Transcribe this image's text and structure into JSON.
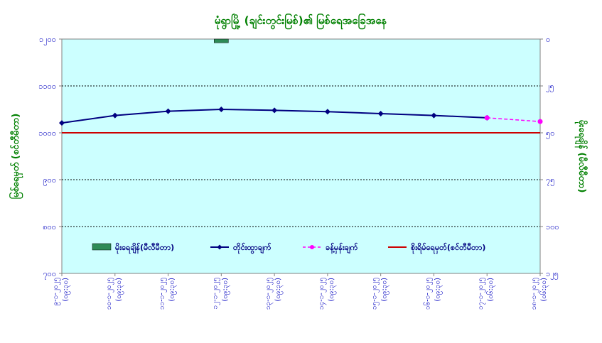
{
  "chart_data": {
    "type": "line",
    "title": "မုံရွာမြို့ (ချင်းတွင်းမြစ်)၏ မြစ်ရေအခြေအနေ",
    "ylabel_left": "မြစ်ရေမှတ် (စင်တီမီတာ)",
    "ylabel_right": "မိုးရေချိန် (မီလီမီတာ)",
    "ylim_left": [
      700,
      1200
    ],
    "ylim_right": [
      0,
      125
    ],
    "yticks_left": [
      "၁၂၀၀",
      "၁၁၀၀",
      "၁၀၀၀",
      "၉၀၀",
      "၈၀၀",
      "၇၀၀"
    ],
    "yticks_right": [
      "၀",
      "၂၅",
      "၅၀",
      "၇၅",
      "၁၀၀",
      "၁၂၅"
    ],
    "grid": true,
    "categories": [
      [
        "၉-၁-၂၀၂၅",
        "(၀၉:၃၀)"
      ],
      [
        "၁၀-၁-၂၀၂၅",
        "(၀၉:၃၀)"
      ],
      [
        "၁၁-၁-၂၀၂၅",
        "(၀၉:၃၀)"
      ],
      [
        "၁၂-၁-၂၀၂၅",
        "(၀၉:၃၀)"
      ],
      [
        "၁၃-၁-၂၀၂၅",
        "(၀၉:၃၀)"
      ],
      [
        "၁၄-၁-၂၀၂၅",
        "(၀၉:၃၀)"
      ],
      [
        "၁၅-၁-၂၀၂၅",
        "(၀၉:၃၀)"
      ],
      [
        "၁၆-၁-၂၀၂၅",
        "(၀၉:၃၀)"
      ],
      [
        "၁၇-၁-၂၀၂၅",
        "(၀၆:၃၀)"
      ],
      [
        "၁၈-၁-၂၀၂၅",
        "(၀၆:၃၀)"
      ]
    ],
    "series": [
      {
        "name": "မိုးရေချိန်(မီလီမီတာ)",
        "kind": "bar",
        "axis": "right",
        "color": "#2e8b57",
        "values": [
          null,
          null,
          null,
          2,
          null,
          null,
          null,
          null,
          null,
          null
        ]
      },
      {
        "name": "တိုင်းထွာချက်",
        "kind": "line",
        "axis": "left",
        "color": "#000080",
        "values": [
          1021,
          1037,
          1046,
          1050,
          1048,
          1045,
          1041,
          1037,
          1032,
          null
        ]
      },
      {
        "name": "ခန့်မှန်းချက်",
        "kind": "dashed",
        "axis": "left",
        "color": "#ff00ff",
        "values": [
          null,
          null,
          null,
          null,
          null,
          null,
          null,
          null,
          1032,
          1024
        ]
      },
      {
        "name": "စိုးရိမ်ရေမှတ်(စင်တီမီတာ)",
        "kind": "hline",
        "axis": "left",
        "color": "#cc0000",
        "value": 1000
      }
    ],
    "legend_position": "bottom-inside"
  }
}
